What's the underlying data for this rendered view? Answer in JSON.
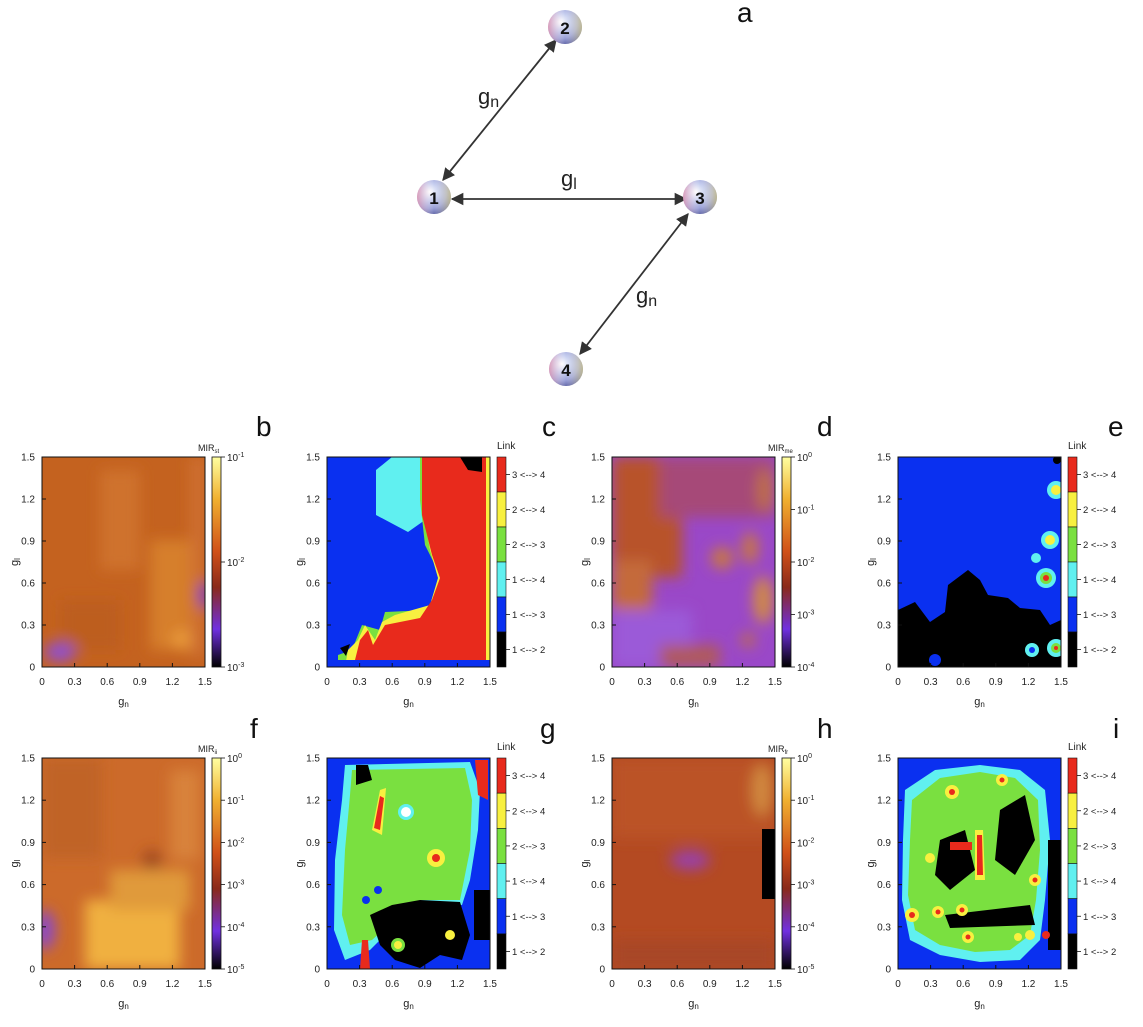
{
  "network": {
    "nodes": [
      {
        "id": "n1",
        "label": "1"
      },
      {
        "id": "n2",
        "label": "2"
      },
      {
        "id": "n3",
        "label": "3"
      },
      {
        "id": "n4",
        "label": "4"
      }
    ],
    "edges": [
      {
        "from": "n1",
        "to": "n2",
        "label": "g",
        "label_sub": "n"
      },
      {
        "from": "n1",
        "to": "n3",
        "label": "g",
        "label_sub": "l"
      },
      {
        "from": "n3",
        "to": "n4",
        "label": "g",
        "label_sub": "n"
      }
    ]
  },
  "chart_data": [
    {
      "panel": "a",
      "type": "diagram",
      "title": "a"
    },
    {
      "panel": "b",
      "type": "heatmap",
      "xlabel": "g",
      "xlabel_sub": "n",
      "ylabel": "g",
      "ylabel_sub": "l",
      "xticks": [
        "0",
        "0.3",
        "0.6",
        "0.9",
        "1.2",
        "1.5"
      ],
      "yticks": [
        "0",
        "0.3",
        "0.6",
        "0.9",
        "1.2",
        "1.5"
      ],
      "xlim": [
        0,
        1.5
      ],
      "ylim": [
        0,
        1.5
      ],
      "colorbar": {
        "title": "MIR",
        "title_sub": "st",
        "scale": "log",
        "range": [
          0.001,
          0.1
        ],
        "ticks": [
          {
            "base": "10",
            "exp": "-1"
          },
          {
            "base": "10",
            "exp": "-2"
          },
          {
            "base": "10",
            "exp": "-3"
          }
        ],
        "palette": [
          "#ffffa0",
          "#f0b030",
          "#d05018",
          "#8a2a1a",
          "#7030e0",
          "#000000"
        ]
      }
    },
    {
      "panel": "c",
      "type": "heatmap",
      "xlabel": "g",
      "xlabel_sub": "n",
      "ylabel": "g",
      "ylabel_sub": "l",
      "xticks": [
        "0",
        "0.3",
        "0.6",
        "0.9",
        "1.2",
        "1.5"
      ],
      "yticks": [
        "0",
        "0.3",
        "0.6",
        "0.9",
        "1.2",
        "1.5"
      ],
      "xlim": [
        0,
        1.5
      ],
      "ylim": [
        0,
        1.5
      ],
      "legend_title": "Link",
      "categories": [
        "3 <--> 4",
        "2 <--> 4",
        "2 <--> 3",
        "1 <--> 4",
        "1 <--> 3",
        "1 <--> 2"
      ],
      "category_colors": [
        "#e82a1c",
        "#f8f040",
        "#7ae040",
        "#60f0f0",
        "#0a30f0",
        "#000000"
      ]
    },
    {
      "panel": "d",
      "type": "heatmap",
      "xlabel": "g",
      "xlabel_sub": "n",
      "ylabel": "g",
      "ylabel_sub": "l",
      "xticks": [
        "0",
        "0.3",
        "0.6",
        "0.9",
        "1.2",
        "1.5"
      ],
      "yticks": [
        "0",
        "0.3",
        "0.6",
        "0.9",
        "1.2",
        "1.5"
      ],
      "xlim": [
        0,
        1.5
      ],
      "ylim": [
        0,
        1.5
      ],
      "colorbar": {
        "title": "MIR",
        "title_sub": "me",
        "scale": "log",
        "range": [
          0.0001,
          1
        ],
        "ticks": [
          {
            "base": "10",
            "exp": "0"
          },
          {
            "base": "10",
            "exp": "-1"
          },
          {
            "base": "10",
            "exp": "-2"
          },
          {
            "base": "10",
            "exp": "-3"
          },
          {
            "base": "10",
            "exp": "-4"
          }
        ],
        "palette": [
          "#ffffa0",
          "#f0b030",
          "#d05018",
          "#8a2a1a",
          "#7030e0",
          "#000000"
        ]
      }
    },
    {
      "panel": "e",
      "type": "heatmap",
      "xlabel": "g",
      "xlabel_sub": "n",
      "ylabel": "g",
      "ylabel_sub": "l",
      "xticks": [
        "0",
        "0.3",
        "0.6",
        "0.9",
        "1.2",
        "1.5"
      ],
      "yticks": [
        "0",
        "0.3",
        "0.6",
        "0.9",
        "1.2",
        "1.5"
      ],
      "xlim": [
        0,
        1.5
      ],
      "ylim": [
        0,
        1.5
      ],
      "legend_title": "Link",
      "categories": [
        "3 <--> 4",
        "2 <--> 4",
        "2 <--> 3",
        "1 <--> 4",
        "1 <--> 3",
        "1 <--> 2"
      ],
      "category_colors": [
        "#e82a1c",
        "#f8f040",
        "#7ae040",
        "#60f0f0",
        "#0a30f0",
        "#000000"
      ]
    },
    {
      "panel": "f",
      "type": "heatmap",
      "xlabel": "g",
      "xlabel_sub": "n",
      "ylabel": "g",
      "ylabel_sub": "l",
      "xticks": [
        "0",
        "0.3",
        "0.6",
        "0.9",
        "1.2",
        "1.5"
      ],
      "yticks": [
        "0",
        "0.3",
        "0.6",
        "0.9",
        "1.2",
        "1.5"
      ],
      "xlim": [
        0,
        1.5
      ],
      "ylim": [
        0,
        1.5
      ],
      "colorbar": {
        "title": "MIR",
        "title_sub": "ii",
        "scale": "log",
        "range": [
          1e-05,
          1
        ],
        "ticks": [
          {
            "base": "10",
            "exp": "0"
          },
          {
            "base": "10",
            "exp": "-1"
          },
          {
            "base": "10",
            "exp": "-2"
          },
          {
            "base": "10",
            "exp": "-3"
          },
          {
            "base": "10",
            "exp": "-4"
          },
          {
            "base": "10",
            "exp": "-5"
          }
        ],
        "palette": [
          "#ffffa0",
          "#f0b030",
          "#d05018",
          "#8a2a1a",
          "#7030e0",
          "#000000"
        ]
      }
    },
    {
      "panel": "g",
      "type": "heatmap",
      "xlabel": "g",
      "xlabel_sub": "n",
      "ylabel": "g",
      "ylabel_sub": "l",
      "xticks": [
        "0",
        "0.3",
        "0.6",
        "0.9",
        "1.2",
        "1.5"
      ],
      "yticks": [
        "0",
        "0.3",
        "0.6",
        "0.9",
        "1.2",
        "1.5"
      ],
      "xlim": [
        0,
        1.5
      ],
      "ylim": [
        0,
        1.5
      ],
      "legend_title": "Link",
      "categories": [
        "3 <--> 4",
        "2 <--> 4",
        "2 <--> 3",
        "1 <--> 4",
        "1 <--> 3",
        "1 <--> 2"
      ],
      "category_colors": [
        "#e82a1c",
        "#f8f040",
        "#7ae040",
        "#60f0f0",
        "#0a30f0",
        "#000000"
      ]
    },
    {
      "panel": "h",
      "type": "heatmap",
      "xlabel": "g",
      "xlabel_sub": "n",
      "ylabel": "g",
      "ylabel_sub": "l",
      "xticks": [
        "0",
        "0.3",
        "0.6",
        "0.9",
        "1.2",
        "1.5"
      ],
      "yticks": [
        "0",
        "0.3",
        "0.6",
        "0.9",
        "1.2",
        "1.5"
      ],
      "xlim": [
        0,
        1.5
      ],
      "ylim": [
        0,
        1.5
      ],
      "colorbar": {
        "title": "MIR",
        "title_sub": "fr",
        "scale": "log",
        "range": [
          1e-05,
          1
        ],
        "ticks": [
          {
            "base": "10",
            "exp": "0"
          },
          {
            "base": "10",
            "exp": "-1"
          },
          {
            "base": "10",
            "exp": "-2"
          },
          {
            "base": "10",
            "exp": "-3"
          },
          {
            "base": "10",
            "exp": "-4"
          },
          {
            "base": "10",
            "exp": "-5"
          }
        ],
        "palette": [
          "#ffffa0",
          "#f0b030",
          "#d05018",
          "#8a2a1a",
          "#7030e0",
          "#000000"
        ]
      }
    },
    {
      "panel": "i",
      "type": "heatmap",
      "xlabel": "g",
      "xlabel_sub": "n",
      "ylabel": "g",
      "ylabel_sub": "l",
      "xticks": [
        "0",
        "0.3",
        "0.6",
        "0.9",
        "1.2",
        "1.5"
      ],
      "yticks": [
        "0",
        "0.3",
        "0.6",
        "0.9",
        "1.2",
        "1.5"
      ],
      "xlim": [
        0,
        1.5
      ],
      "ylim": [
        0,
        1.5
      ],
      "legend_title": "Link",
      "categories": [
        "3 <--> 4",
        "2 <--> 4",
        "2 <--> 3",
        "1 <--> 4",
        "1 <--> 3",
        "1 <--> 2"
      ],
      "category_colors": [
        "#e82a1c",
        "#f8f040",
        "#7ae040",
        "#60f0f0",
        "#0a30f0",
        "#000000"
      ]
    }
  ]
}
